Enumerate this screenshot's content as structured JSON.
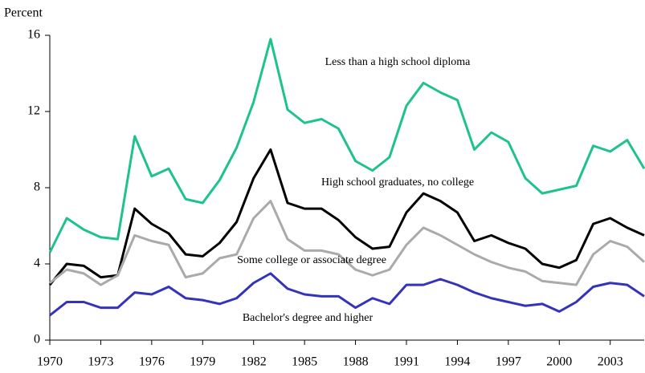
{
  "chart_data": {
    "type": "line",
    "y_label": "Percent",
    "x": [
      1970,
      1971,
      1972,
      1973,
      1974,
      1975,
      1976,
      1977,
      1978,
      1979,
      1980,
      1981,
      1982,
      1983,
      1984,
      1985,
      1986,
      1987,
      1988,
      1989,
      1990,
      1991,
      1992,
      1993,
      1994,
      1995,
      1996,
      1997,
      1998,
      1999,
      2000,
      2001,
      2002,
      2003,
      2004,
      2005
    ],
    "series": [
      {
        "name": "Less than a high school diploma",
        "color": "#1ec28f",
        "values": [
          4.6,
          6.4,
          5.8,
          5.4,
          5.3,
          10.7,
          8.6,
          9.0,
          7.4,
          7.2,
          8.4,
          10.1,
          12.5,
          15.8,
          12.1,
          11.4,
          11.6,
          11.1,
          9.4,
          8.9,
          9.6,
          12.3,
          13.5,
          13.0,
          12.6,
          10.0,
          10.9,
          10.4,
          8.5,
          7.7,
          7.9,
          8.1,
          10.2,
          9.9,
          10.5,
          9.0
        ]
      },
      {
        "name": "High school graduates, no college",
        "color": "#000000",
        "values": [
          2.9,
          4.0,
          3.9,
          3.3,
          3.4,
          6.9,
          6.1,
          5.6,
          4.5,
          4.4,
          5.1,
          6.2,
          8.5,
          10.0,
          7.2,
          6.9,
          6.9,
          6.3,
          5.4,
          4.8,
          4.9,
          6.7,
          7.7,
          7.3,
          6.7,
          5.2,
          5.5,
          5.1,
          4.8,
          4.0,
          3.8,
          4.2,
          6.1,
          6.4,
          5.9,
          5.5
        ]
      },
      {
        "name": "Some college or associate degree",
        "color": "#aaaaaa",
        "values": [
          3.0,
          3.7,
          3.5,
          2.9,
          3.4,
          5.5,
          5.2,
          5.0,
          3.3,
          3.5,
          4.3,
          4.5,
          6.4,
          7.3,
          5.3,
          4.7,
          4.7,
          4.5,
          3.7,
          3.4,
          3.7,
          5.0,
          5.9,
          5.5,
          5.0,
          4.5,
          4.1,
          3.8,
          3.6,
          3.1,
          3.0,
          2.9,
          4.5,
          5.2,
          4.9,
          4.1
        ]
      },
      {
        "name": "Bachelor's degree and higher",
        "color": "#3333bb",
        "values": [
          1.3,
          2.0,
          2.0,
          1.7,
          1.7,
          2.5,
          2.4,
          2.8,
          2.2,
          2.1,
          1.9,
          2.2,
          3.0,
          3.5,
          2.7,
          2.4,
          2.3,
          2.3,
          1.7,
          2.2,
          1.9,
          2.9,
          2.9,
          3.2,
          2.9,
          2.5,
          2.2,
          2.0,
          1.8,
          1.9,
          1.5,
          2.0,
          2.8,
          3.0,
          2.9,
          2.3
        ]
      }
    ],
    "xlim": [
      1970,
      2005
    ],
    "xticks": [
      1970,
      1973,
      1976,
      1979,
      1982,
      1985,
      1988,
      1991,
      1994,
      1997,
      2000,
      2003
    ],
    "ylim": [
      0,
      16
    ],
    "yticks": [
      0,
      4,
      8,
      12,
      16
    ]
  }
}
